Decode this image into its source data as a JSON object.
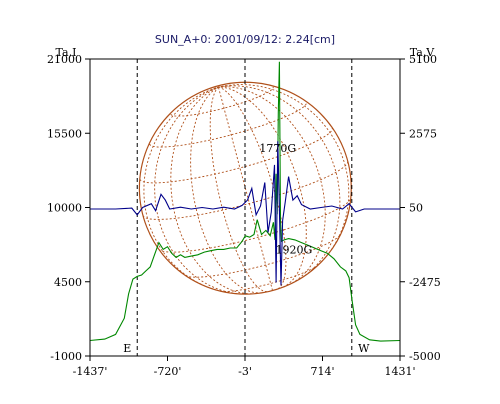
{
  "chart_data": {
    "type": "line",
    "title": "SUN_A+0: 2001/09/12: 2.24[cm]",
    "left_axis_label": "Ta,I",
    "right_axis_label": "Ta,V",
    "x_ticks": [
      "-1437'",
      "-720'",
      "-3'",
      "714'",
      "1431'"
    ],
    "x_tick_values": [
      -1437,
      -720,
      -3,
      714,
      1431
    ],
    "xlim": [
      -1437,
      1431
    ],
    "left_ticks": [
      "21000",
      "15500",
      "10000",
      "4500",
      "-1000"
    ],
    "left_tick_values": [
      21000,
      15500,
      10000,
      4500,
      -1000
    ],
    "left_ylim": [
      -1000,
      21000
    ],
    "right_ticks": [
      "5100",
      "2575",
      "50",
      "-2475",
      "-5000"
    ],
    "right_tick_values": [
      5100,
      2575,
      50,
      -2475,
      -5000
    ],
    "right_ylim": [
      -5000,
      5100
    ],
    "limb_markers": {
      "east": {
        "label": "E",
        "x": -1000
      },
      "center": {
        "label": "",
        "x": -3
      },
      "west": {
        "label": "W",
        "x": 985
      }
    },
    "solar_disk": {
      "center_x": 0,
      "radius_arcmin": 980,
      "color": "#b0501a"
    },
    "annotations": [
      {
        "text": "1770G",
        "x": 300,
        "y_left": 14100
      },
      {
        "text": "1920G",
        "x": 450,
        "y_left": 6600
      }
    ],
    "series": [
      {
        "name": "I",
        "color": "#008800",
        "axis": "left",
        "points": [
          [
            -1437,
            150
          ],
          [
            -1300,
            250
          ],
          [
            -1200,
            600
          ],
          [
            -1120,
            1800
          ],
          [
            -1080,
            3600
          ],
          [
            -1040,
            4700
          ],
          [
            -1000,
            4900
          ],
          [
            -960,
            5000
          ],
          [
            -920,
            5300
          ],
          [
            -880,
            5600
          ],
          [
            -840,
            6500
          ],
          [
            -800,
            7400
          ],
          [
            -760,
            6900
          ],
          [
            -720,
            7100
          ],
          [
            -680,
            6600
          ],
          [
            -640,
            6300
          ],
          [
            -600,
            6500
          ],
          [
            -560,
            6300
          ],
          [
            -500,
            6400
          ],
          [
            -440,
            6500
          ],
          [
            -380,
            6700
          ],
          [
            -320,
            6800
          ],
          [
            -260,
            6900
          ],
          [
            -200,
            6900
          ],
          [
            -140,
            7000
          ],
          [
            -80,
            7000
          ],
          [
            -30,
            7500
          ],
          [
            0,
            7900
          ],
          [
            40,
            7800
          ],
          [
            80,
            8000
          ],
          [
            110,
            9100
          ],
          [
            150,
            8000
          ],
          [
            190,
            8300
          ],
          [
            230,
            7900
          ],
          [
            260,
            8900
          ],
          [
            275,
            7600
          ],
          [
            285,
            12500
          ],
          [
            295,
            9500
          ],
          [
            305,
            17000
          ],
          [
            315,
            20800
          ],
          [
            325,
            9000
          ],
          [
            335,
            7500
          ],
          [
            360,
            7600
          ],
          [
            400,
            7700
          ],
          [
            460,
            7600
          ],
          [
            520,
            7400
          ],
          [
            580,
            7200
          ],
          [
            640,
            7000
          ],
          [
            700,
            6800
          ],
          [
            760,
            6600
          ],
          [
            820,
            6200
          ],
          [
            880,
            5600
          ],
          [
            930,
            5300
          ],
          [
            960,
            4800
          ],
          [
            990,
            3000
          ],
          [
            1020,
            1300
          ],
          [
            1060,
            600
          ],
          [
            1150,
            200
          ],
          [
            1250,
            100
          ],
          [
            1431,
            150
          ]
        ]
      },
      {
        "name": "V",
        "color": "#00008a",
        "axis": "right",
        "points": [
          [
            -1437,
            0
          ],
          [
            -1200,
            0
          ],
          [
            -1050,
            30
          ],
          [
            -1000,
            -200
          ],
          [
            -950,
            50
          ],
          [
            -870,
            180
          ],
          [
            -830,
            -60
          ],
          [
            -780,
            500
          ],
          [
            -740,
            300
          ],
          [
            -700,
            0
          ],
          [
            -600,
            60
          ],
          [
            -500,
            0
          ],
          [
            -400,
            50
          ],
          [
            -300,
            0
          ],
          [
            -200,
            60
          ],
          [
            -100,
            0
          ],
          [
            -30,
            120
          ],
          [
            20,
            300
          ],
          [
            60,
            700
          ],
          [
            100,
            -200
          ],
          [
            140,
            100
          ],
          [
            180,
            900
          ],
          [
            210,
            -800
          ],
          [
            240,
            -100
          ],
          [
            270,
            1500
          ],
          [
            285,
            -2500
          ],
          [
            300,
            2300
          ],
          [
            315,
            0
          ],
          [
            330,
            -2600
          ],
          [
            345,
            -400
          ],
          [
            370,
            250
          ],
          [
            400,
            1100
          ],
          [
            440,
            300
          ],
          [
            480,
            450
          ],
          [
            520,
            150
          ],
          [
            600,
            0
          ],
          [
            700,
            50
          ],
          [
            800,
            100
          ],
          [
            900,
            0
          ],
          [
            960,
            180
          ],
          [
            1020,
            -100
          ],
          [
            1100,
            0
          ],
          [
            1431,
            0
          ]
        ]
      }
    ]
  }
}
